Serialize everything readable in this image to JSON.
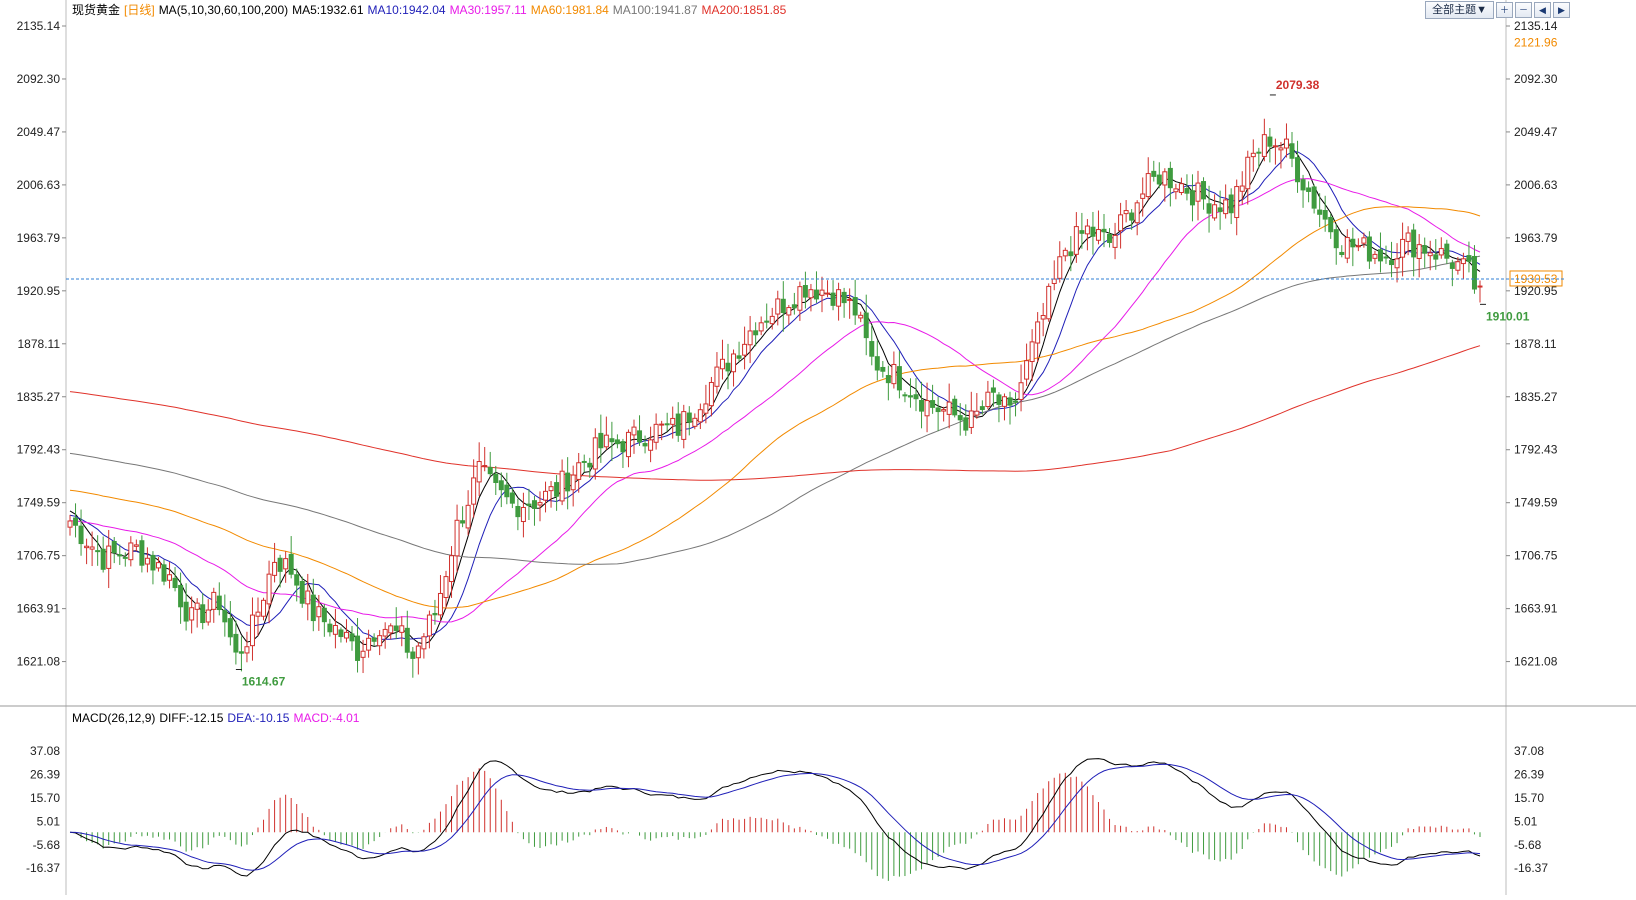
{
  "legend_main": {
    "instrument": "现货黄金",
    "period": "[日线]",
    "ma_params": "MA(5,10,30,60,100,200)",
    "items": [
      {
        "text": "MA5:1932.61",
        "color": "#000000"
      },
      {
        "text": "MA10:1942.04",
        "color": "#1f1fb8"
      },
      {
        "text": "MA30:1957.11",
        "color": "#e81be8"
      },
      {
        "text": "MA60:1981.84",
        "color": "#f28a00"
      },
      {
        "text": "MA100:1941.87",
        "color": "#777777"
      },
      {
        "text": "MA200:1851.85",
        "color": "#e0322a"
      }
    ]
  },
  "legend_macd": {
    "params": "MACD(26,12,9)",
    "items": [
      {
        "text": "DIFF:-12.15",
        "color": "#000000"
      },
      {
        "text": "DEA:-10.15",
        "color": "#1f1fb8"
      },
      {
        "text": "MACD:-4.01",
        "color": "#e81be8"
      }
    ]
  },
  "toolbar": {
    "theme_label": "全部主题▼",
    "icons": [
      "zoom-in-icon",
      "zoom-out-icon",
      "prev-icon",
      "next-icon"
    ]
  },
  "colors": {
    "up": "#d0312d",
    "down": "#3f9b3f",
    "current_line": "#2f7fd6",
    "grid": "#d8d8d8"
  },
  "chart_data": {
    "type": "candlestick",
    "title": "现货黄金 [日线]",
    "price_axis": {
      "ticks": [
        2135.14,
        2092.3,
        2049.47,
        2006.63,
        1963.79,
        1920.95,
        1878.11,
        1835.27,
        1792.43,
        1749.59,
        1706.75,
        1663.91,
        1621.08
      ],
      "range": [
        1590,
        2140
      ]
    },
    "extra_price_labels": [
      {
        "value": "2121.96",
        "color": "#f28a00"
      },
      {
        "value": "1930.53",
        "color": "#f28a00",
        "boxed": true
      }
    ],
    "current_price": 1930.53,
    "annotations": [
      {
        "text": "2079.38",
        "kind": "high",
        "color": "#d0312d"
      },
      {
        "text": "1614.67",
        "kind": "low",
        "color": "#3f9b3f"
      },
      {
        "text": "1910.01",
        "kind": "low",
        "color": "#3f9b3f"
      }
    ],
    "high_point": 2079.38,
    "low_point_1": 1614.67,
    "low_point_2": 1910.01,
    "price_path_anchors": [
      [
        0,
        1735
      ],
      [
        6,
        1705
      ],
      [
        12,
        1712
      ],
      [
        18,
        1690
      ],
      [
        22,
        1655
      ],
      [
        27,
        1670
      ],
      [
        30,
        1625
      ],
      [
        33,
        1648
      ],
      [
        37,
        1705
      ],
      [
        40,
        1695
      ],
      [
        44,
        1660
      ],
      [
        48,
        1648
      ],
      [
        52,
        1630
      ],
      [
        56,
        1652
      ],
      [
        60,
        1640
      ],
      [
        62,
        1625
      ],
      [
        66,
        1660
      ],
      [
        70,
        1730
      ],
      [
        74,
        1775
      ],
      [
        77,
        1758
      ],
      [
        80,
        1748
      ],
      [
        85,
        1752
      ],
      [
        88,
        1760
      ],
      [
        92,
        1780
      ],
      [
        96,
        1795
      ],
      [
        101,
        1800
      ],
      [
        105,
        1808
      ],
      [
        110,
        1810
      ],
      [
        115,
        1840
      ],
      [
        120,
        1870
      ],
      [
        124,
        1895
      ],
      [
        128,
        1908
      ],
      [
        133,
        1925
      ],
      [
        138,
        1920
      ],
      [
        142,
        1905
      ],
      [
        145,
        1865
      ],
      [
        150,
        1850
      ],
      [
        155,
        1830
      ],
      [
        160,
        1820
      ],
      [
        163,
        1815
      ],
      [
        167,
        1835
      ],
      [
        170,
        1820
      ],
      [
        173,
        1860
      ],
      [
        176,
        1900
      ],
      [
        180,
        1955
      ],
      [
        184,
        1970
      ],
      [
        188,
        1960
      ],
      [
        193,
        1995
      ],
      [
        197,
        2015
      ],
      [
        200,
        2010
      ],
      [
        205,
        1995
      ],
      [
        210,
        1990
      ],
      [
        214,
        2030
      ],
      [
        217,
        2045
      ],
      [
        220,
        2035
      ],
      [
        223,
        2010
      ],
      [
        226,
        1985
      ],
      [
        230,
        1960
      ],
      [
        234,
        1955
      ],
      [
        238,
        1950
      ],
      [
        242,
        1960
      ],
      [
        246,
        1955
      ],
      [
        250,
        1945
      ],
      [
        253,
        1935
      ],
      [
        255,
        1915
      ]
    ],
    "ma_lines": [
      {
        "name": "MA5",
        "color": "#000000"
      },
      {
        "name": "MA10",
        "color": "#1f1fb8"
      },
      {
        "name": "MA30",
        "color": "#e81be8"
      },
      {
        "name": "MA60",
        "color": "#f28a00"
      },
      {
        "name": "MA100",
        "color": "#777777"
      },
      {
        "name": "MA200",
        "color": "#e0322a"
      }
    ],
    "macd_axis": {
      "ticks": [
        37.08,
        26.39,
        15.7,
        5.01,
        -5.68,
        -16.37
      ],
      "range": [
        -24,
        42
      ]
    }
  }
}
